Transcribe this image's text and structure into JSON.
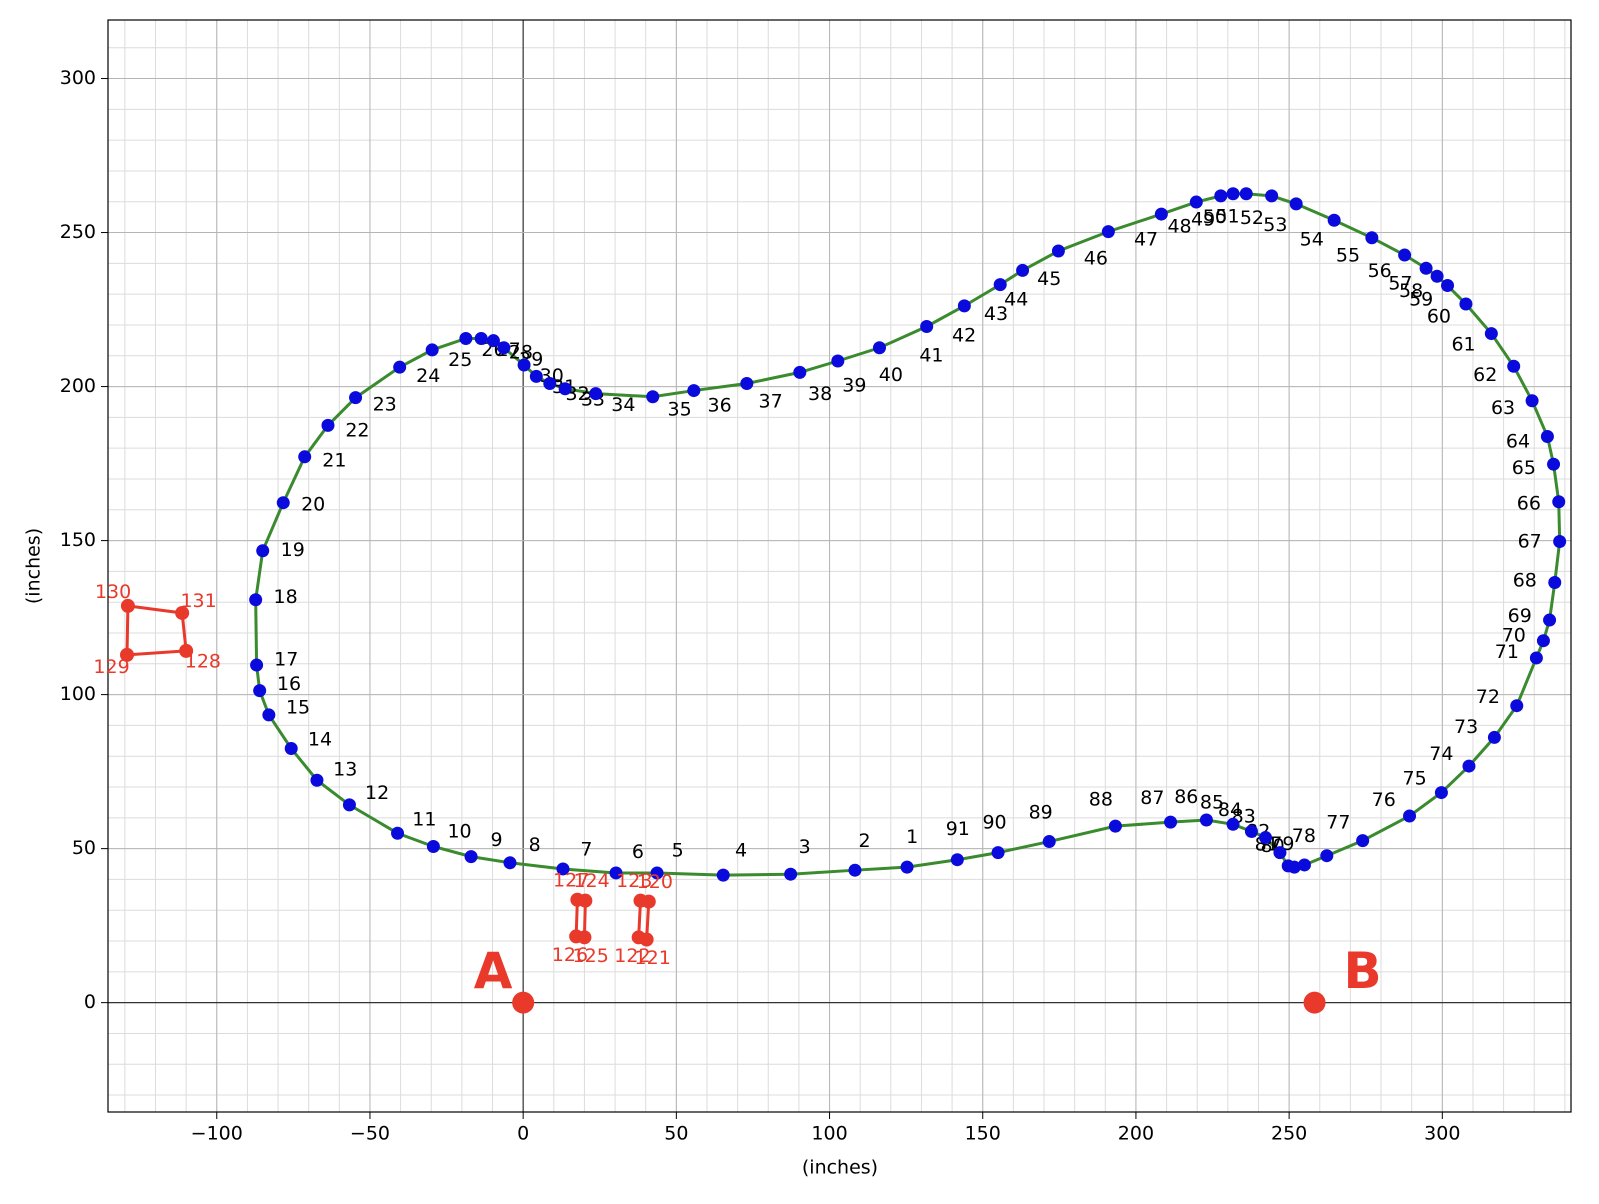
{
  "chart_data": {
    "type": "scatter",
    "xlabel": "(inches)",
    "ylabel": "(inches)",
    "xlim": [
      -135.5,
      342
    ],
    "ylim": [
      -35.5,
      319
    ],
    "xticks": [
      {
        "value": -100,
        "label": "−100"
      },
      {
        "value": -50,
        "label": "−50"
      },
      0,
      50,
      100,
      150,
      200,
      250,
      300
    ],
    "yticks": [
      0,
      50,
      100,
      150,
      200,
      250,
      300
    ],
    "grid": true,
    "minor_grid_step": 10,
    "path": {
      "color": "#3a8a2e",
      "point_color": "#0a0adc",
      "labels": [
        "1",
        "2",
        "3",
        "4",
        "5",
        "6",
        "7",
        "8",
        "9",
        "10",
        "11",
        "12",
        "13",
        "14",
        "15",
        "16",
        "17",
        "18",
        "19",
        "20",
        "21",
        "22",
        "23",
        "24",
        "25",
        "26",
        "27",
        "28",
        "29",
        "30",
        "31",
        "32",
        "33",
        "34",
        "35",
        "36",
        "37",
        "38",
        "39",
        "40",
        "41",
        "42",
        "43",
        "44",
        "45",
        "46",
        "47",
        "48",
        "49",
        "50",
        "51",
        "52",
        "53",
        "54",
        "55",
        "56",
        "57",
        "58",
        "59",
        "60",
        "61",
        "62",
        "63",
        "64",
        "65",
        "66",
        "67",
        "68",
        "69",
        "70",
        "71",
        "72",
        "73",
        "74",
        "75",
        "76",
        "77",
        "78",
        "79",
        "80",
        "81",
        "82",
        "83",
        "84",
        "85",
        "86",
        "87",
        "88",
        "89",
        "90",
        "91"
      ],
      "x": [
        125.3,
        108.3,
        87.3,
        65.3,
        43.7,
        30.3,
        13,
        -4.3,
        -17,
        -29.3,
        -41,
        -56.7,
        -67.3,
        -75.7,
        -83,
        -86,
        -87,
        -87.3,
        -85,
        -78.3,
        -71.3,
        -63.7,
        -54.7,
        -40.3,
        -29.7,
        -18.7,
        -13.7,
        -9.7,
        -6.3,
        0.3,
        4.3,
        8.7,
        13.7,
        23.7,
        42.3,
        55.7,
        73,
        90.3,
        102.7,
        116.3,
        131.7,
        144,
        155.7,
        163,
        174.7,
        191,
        208.3,
        219.7,
        227.7,
        231.7,
        236,
        244.3,
        252.3,
        264.7,
        277,
        287.7,
        294.7,
        298.3,
        301.7,
        307.7,
        316,
        323.3,
        329.3,
        334.3,
        336.3,
        338,
        338.3,
        336.7,
        335,
        333,
        330.7,
        324.3,
        317,
        308.7,
        299.7,
        289.3,
        274,
        262.3,
        255,
        251.7,
        249.7,
        247,
        242.3,
        237.7,
        231.7,
        223,
        211.3,
        193.3,
        171.7,
        155,
        141.7
      ],
      "y": [
        44.0,
        43.0,
        41.7,
        41.4,
        42.1,
        42.1,
        43.4,
        45.4,
        47.4,
        50.7,
        55,
        64.2,
        72.2,
        82.5,
        93.4,
        101.3,
        109.6,
        130.8,
        146.7,
        162.3,
        177.2,
        187.4,
        196.4,
        206.3,
        211.9,
        215.6,
        215.6,
        214.9,
        212.6,
        207,
        203.3,
        201,
        199.3,
        197.7,
        196.7,
        198.7,
        201,
        204.6,
        208.3,
        212.6,
        219.5,
        226.2,
        233.1,
        237.7,
        244,
        250.3,
        256,
        259.9,
        261.9,
        262.6,
        262.6,
        261.9,
        259.3,
        254,
        248.3,
        242.7,
        238.4,
        235.8,
        232.8,
        226.8,
        217.2,
        206.6,
        195.4,
        183.8,
        174.8,
        162.6,
        149.7,
        136.4,
        124.2,
        117.5,
        111.9,
        96.4,
        86.1,
        76.8,
        68.2,
        60.6,
        52.6,
        47.7,
        44.7,
        44.0,
        44.4,
        48.7,
        53.6,
        55.6,
        57.9,
        59.3,
        58.6,
        57.3,
        52.3,
        48.7,
        46.4
      ]
    },
    "obstacles": {
      "color": "#e8392b",
      "shapes": [
        {
          "labels": [
            "127",
            "126"
          ],
          "x": [
            17.7,
            17.3
          ],
          "y": [
            33.4,
            21.5
          ]
        },
        {
          "labels": [
            "124",
            "125"
          ],
          "x": [
            20.3,
            20
          ],
          "y": [
            33.1,
            21.2
          ]
        },
        {
          "labels": [
            "123",
            "122"
          ],
          "x": [
            38.3,
            37.7
          ],
          "y": [
            33.1,
            21.2
          ]
        },
        {
          "labels": [
            "120",
            "121"
          ],
          "x": [
            41,
            40.3
          ],
          "y": [
            32.8,
            20.5
          ]
        },
        {
          "labels": [
            "131",
            "128",
            "129",
            "130"
          ],
          "x": [
            -111.3,
            -110,
            -129.3,
            -129
          ],
          "y": [
            126.5,
            114.2,
            112.9,
            128.8
          ]
        }
      ]
    },
    "markers": {
      "color": "#e8392b",
      "labels": [
        "A",
        "B"
      ],
      "x": [
        0,
        258.3
      ],
      "y": [
        0,
        0
      ]
    }
  }
}
